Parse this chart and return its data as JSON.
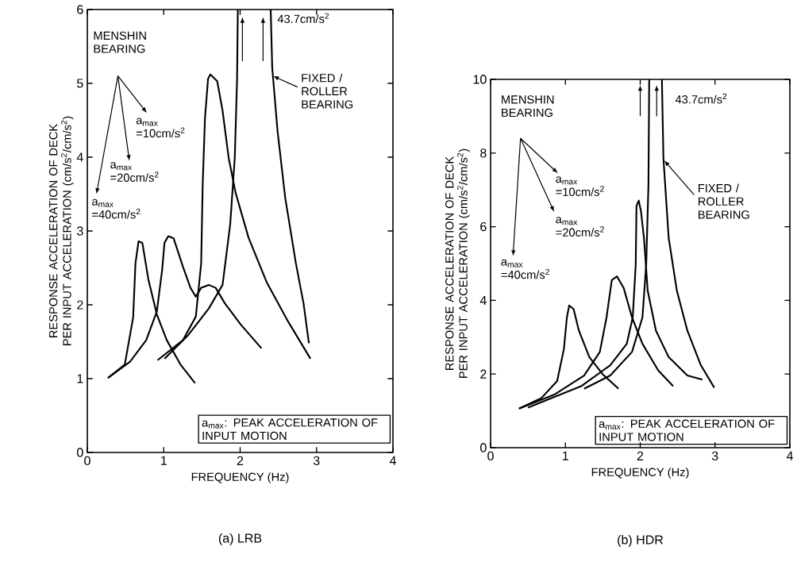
{
  "chart_data": [
    {
      "type": "line",
      "xlabel": "FREQUENCY (Hz)",
      "ylabel": "RESPONSE ACCELERATION OF DECK PER INPUT ACCELERATION (cm/s$^{2}$/cm/s$^{2}$)",
      "xlim": [
        0,
        4
      ],
      "ylim": [
        0,
        6
      ],
      "xticks": [
        0,
        1,
        2,
        3,
        4
      ],
      "yticks": [
        0,
        1,
        2,
        3,
        4,
        5,
        6
      ],
      "marker": "none",
      "line_style": "solid",
      "series": [
        {
          "color": "#000000",
          "x": [
            0.92,
            1.25,
            1.42,
            1.49,
            1.51,
            1.54,
            1.58,
            1.61,
            1.7,
            1.77,
            1.85,
            1.94,
            2.11,
            2.35,
            2.63,
            2.92
          ],
          "values": [
            1.25,
            1.52,
            1.84,
            2.56,
            3.63,
            4.53,
            5.06,
            5.12,
            5.03,
            4.63,
            3.99,
            3.52,
            2.91,
            2.3,
            1.77,
            1.27
          ]
        },
        {
          "color": "#000000",
          "x": [
            0.27,
            0.56,
            0.77,
            0.91,
            0.98,
            1.01,
            1.06,
            1.13,
            1.25,
            1.35,
            1.42,
            1.49,
            1.59,
            1.68,
            1.8,
            2.01,
            2.28
          ],
          "values": [
            1.01,
            1.23,
            1.52,
            1.91,
            2.48,
            2.84,
            2.93,
            2.9,
            2.52,
            2.23,
            2.11,
            2.23,
            2.27,
            2.23,
            2.02,
            1.73,
            1.41
          ]
        },
        {
          "color": "#000000",
          "x": [
            0.27,
            0.49,
            0.6,
            0.63,
            0.67,
            0.72,
            0.8,
            0.91,
            1.04,
            1.22,
            1.41
          ],
          "values": [
            1.01,
            1.19,
            1.83,
            2.56,
            2.86,
            2.84,
            2.34,
            1.87,
            1.52,
            1.19,
            0.94
          ]
        },
        {
          "color": "#000000",
          "x": [
            1.01,
            1.32,
            1.59,
            1.77,
            1.87,
            1.93,
            1.96,
            1.97,
            2.2,
            2.4,
            2.42,
            2.49,
            2.59,
            2.73,
            2.83,
            2.9
          ],
          "values": [
            1.27,
            1.59,
            1.95,
            2.27,
            3.09,
            3.99,
            5.06,
            6,
            null,
            6,
            5.21,
            4.35,
            3.45,
            2.56,
            2.02,
            1.48
          ]
        }
      ],
      "annotations": [
        "MENSHIN BEARING",
        "a$_{max}$ =10cm/s$^{2}$",
        "a$_{max}$ =20cm/s$^{2}$",
        "a$_{max}$ =40cm/s$^{2}$",
        "43.7cm/s$^{2}$",
        {
          "text": "FIXED / ROLLER BEARING",
          "x": 2.43,
          "y": 5.1
        },
        "a$_{max}$: PEAK ACCELERATION OF INPUT MOTION",
        "(a) LRB"
      ]
    },
    {
      "type": "line",
      "xlabel": "FREQUENCY (Hz)",
      "ylabel": "RESPONSE ACCELERATION OF DECK PER INPUT ACCELERATION (cm/s$^{2}$/cm/s$^{2}$)",
      "xlim": [
        0,
        4
      ],
      "ylim": [
        0,
        10
      ],
      "xticks": [
        0,
        1,
        2,
        3,
        4
      ],
      "yticks": [
        0,
        2,
        4,
        6,
        8,
        10
      ],
      "marker": "none",
      "line_style": "solid",
      "series": [
        {
          "color": "#000000",
          "x": [
            0.5,
            1.21,
            1.6,
            1.82,
            1.9,
            1.94,
            1.95,
            1.98,
            2.01,
            2.05,
            2.1,
            2.21,
            2.38,
            2.63,
            2.83
          ],
          "values": [
            1.09,
            1.67,
            2.24,
            2.82,
            3.54,
            4.98,
            6.56,
            6.71,
            6.42,
            5.7,
            4.26,
            3.18,
            2.46,
            1.96,
            1.85
          ]
        },
        {
          "color": "#000000",
          "x": [
            0.38,
            0.86,
            1.25,
            1.46,
            1.55,
            1.62,
            1.69,
            1.78,
            1.89,
            2.03,
            2.24,
            2.44
          ],
          "values": [
            1.06,
            1.45,
            1.96,
            2.6,
            3.54,
            4.55,
            4.65,
            4.33,
            3.54,
            2.82,
            2.1,
            1.67
          ]
        },
        {
          "color": "#000000",
          "x": [
            0.38,
            0.68,
            0.89,
            0.98,
            1.02,
            1.05,
            1.11,
            1.18,
            1.32,
            1.5,
            1.71
          ],
          "values": [
            1.06,
            1.35,
            1.81,
            2.68,
            3.54,
            3.86,
            3.76,
            3.18,
            2.46,
            1.99,
            1.6
          ]
        },
        {
          "color": "#000000",
          "x": [
            1.25,
            1.6,
            1.89,
            2.03,
            2.08,
            2.11,
            2.12,
            2.2,
            2.29,
            2.31,
            2.38,
            2.49,
            2.63,
            2.81,
            2.99
          ],
          "values": [
            1.6,
            1.96,
            2.6,
            3.54,
            4.98,
            7.14,
            10,
            null,
            10,
            7.86,
            5.7,
            4.26,
            3.18,
            2.24,
            1.63
          ]
        }
      ],
      "annotations": [
        "MENSHIN BEARING",
        "a$_{max}$ =10cm/s$^{2}$",
        "a$_{max}$ =20cm/s$^{2}$",
        "a$_{max}$ =40cm/s$^{2}$",
        "43.7cm/s$^{2}$",
        {
          "text": "FIXED / ROLLER BEARING",
          "x": 2.32,
          "y": 7.8
        },
        "a$_{max}$: PEAK ACCELERATION OF INPUT MOTION",
        "(b) HDR"
      ]
    }
  ]
}
